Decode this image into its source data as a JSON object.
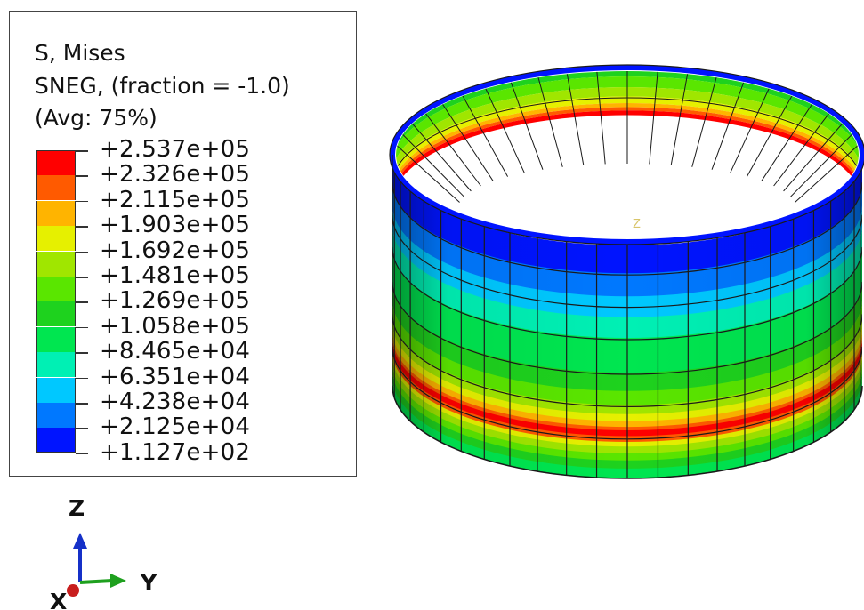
{
  "legend": {
    "title_line1": "S, Mises",
    "title_line2": "SNEG, (fraction = -1.0)",
    "title_line3": "(Avg: 75%)",
    "labels": [
      "+2.537e+05",
      "+2.326e+05",
      "+2.115e+05",
      "+1.903e+05",
      "+1.692e+05",
      "+1.481e+05",
      "+1.269e+05",
      "+1.058e+05",
      "+8.465e+04",
      "+6.351e+04",
      "+4.238e+04",
      "+2.125e+04",
      "+1.127e+02"
    ],
    "colors": [
      "#ff0000",
      "#ff5a00",
      "#ffb400",
      "#e6f000",
      "#a0e600",
      "#5ae600",
      "#1ed21e",
      "#00e650",
      "#00f0b4",
      "#00c8ff",
      "#0078ff",
      "#0014ff"
    ]
  },
  "triad": {
    "z_label": "Z",
    "y_label": "Y",
    "x_label": "X"
  },
  "model": {
    "axis_label": "Z"
  },
  "colors": {
    "mesh_line": "#1a1a1a",
    "z_arrow": "#1530c8",
    "y_arrow": "#1ea01e",
    "x_dot": "#c81e1e"
  }
}
